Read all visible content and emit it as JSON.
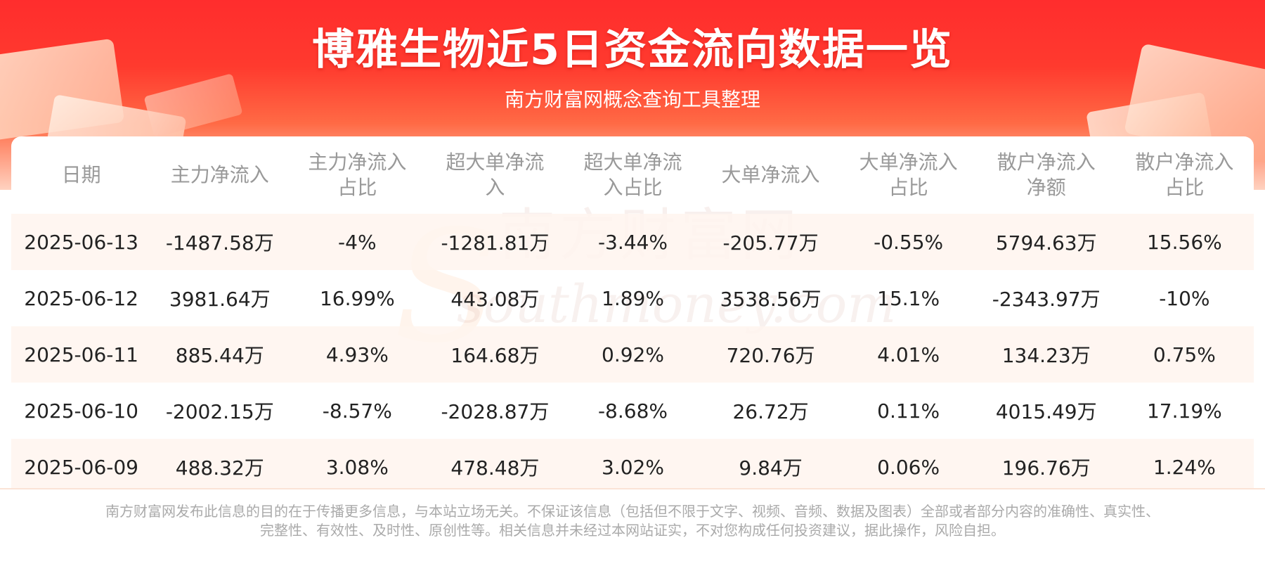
{
  "header": {
    "title": "博雅生物近5日资金流向数据一览",
    "subtitle": "南方财富网概念查询工具整理"
  },
  "watermark": {
    "cn": "南方财富网",
    "en": "southmoney.com"
  },
  "table": {
    "headers": [
      {
        "line1": "日期",
        "line2": ""
      },
      {
        "line1": "主力净流入",
        "line2": ""
      },
      {
        "line1": "主力净流入",
        "line2": "占比"
      },
      {
        "line1": "超大单净流",
        "line2": "入"
      },
      {
        "line1": "超大单净流",
        "line2": "入占比"
      },
      {
        "line1": "大单净流入",
        "line2": ""
      },
      {
        "line1": "大单净流入",
        "line2": "占比"
      },
      {
        "line1": "散户净流入",
        "line2": "净额"
      },
      {
        "line1": "散户净流入",
        "line2": "占比"
      }
    ],
    "rows": [
      [
        "2025-06-13",
        "-1487.58万",
        "-4%",
        "-1281.81万",
        "-3.44%",
        "-205.77万",
        "-0.55%",
        "5794.63万",
        "15.56%"
      ],
      [
        "2025-06-12",
        "3981.64万",
        "16.99%",
        "443.08万",
        "1.89%",
        "3538.56万",
        "15.1%",
        "-2343.97万",
        "-10%"
      ],
      [
        "2025-06-11",
        "885.44万",
        "4.93%",
        "164.68万",
        "0.92%",
        "720.76万",
        "4.01%",
        "134.23万",
        "0.75%"
      ],
      [
        "2025-06-10",
        "-2002.15万",
        "-8.57%",
        "-2028.87万",
        "-8.68%",
        "26.72万",
        "0.11%",
        "4015.49万",
        "17.19%"
      ],
      [
        "2025-06-09",
        "488.32万",
        "3.08%",
        "478.48万",
        "3.02%",
        "9.84万",
        "0.06%",
        "196.76万",
        "1.24%"
      ]
    ]
  },
  "footer": {
    "line1": "南方财富网发布此信息的目的在于传播更多信息，与本站立场无关。不保证该信息（包括但不限于文字、视频、音频、数据及图表）全部或者部分内容的准确性、真实性、",
    "line2": "完整性、有效性、及时性、原创性等。相关信息并未经过本网站证实，不对您构成任何投资建议，据此操作，风险自担。"
  },
  "colors": {
    "banner_red": "#ff2d2d",
    "header_text": "#999999",
    "row_stripe": "#fff5ee"
  }
}
